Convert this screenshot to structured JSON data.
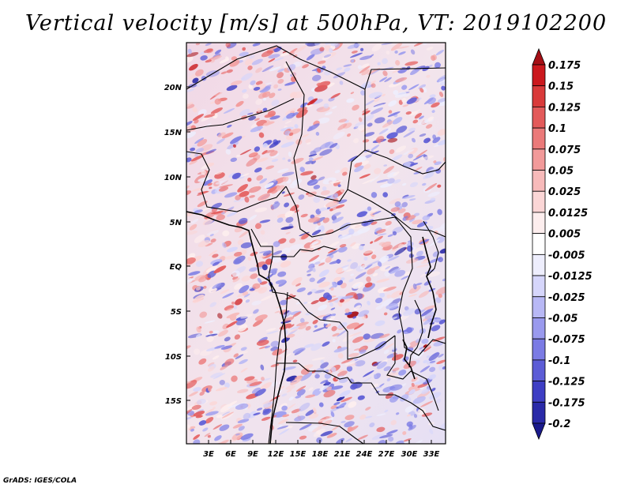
{
  "title": "Vertical velocity [m/s] at 500hPa, VT: 2019102200",
  "credit": "GrADS: IGES/COLA",
  "lat_labels": [
    "20N",
    "15N",
    "10N",
    "5N",
    "EQ",
    "5S",
    "10S",
    "15S"
  ],
  "lon_labels": [
    "3E",
    "6E",
    "9E",
    "12E",
    "15E",
    "18E",
    "21E",
    "24E",
    "27E",
    "30E",
    "33E"
  ],
  "colorbar": {
    "labels": [
      "0.175",
      "0.15",
      "0.125",
      "0.1",
      "0.075",
      "0.05",
      "0.025",
      "0.0125",
      "0.005",
      "-0.005",
      "-0.0125",
      "-0.025",
      "-0.05",
      "-0.075",
      "-0.1",
      "-0.125",
      "-0.175",
      "-0.2"
    ],
    "colors": [
      "#a50f15",
      "#cb181d",
      "#d93a3a",
      "#e35a5a",
      "#eb7a7a",
      "#f29a9a",
      "#f7baba",
      "#fbd6d6",
      "#fdeeee",
      "#ffffff",
      "#eeeefd",
      "#d6d6fb",
      "#b8b8f5",
      "#9a9aee",
      "#7b7be4",
      "#5c5cd6",
      "#3e3ec4",
      "#2a2aa8",
      "#1a1a8c"
    ]
  }
}
